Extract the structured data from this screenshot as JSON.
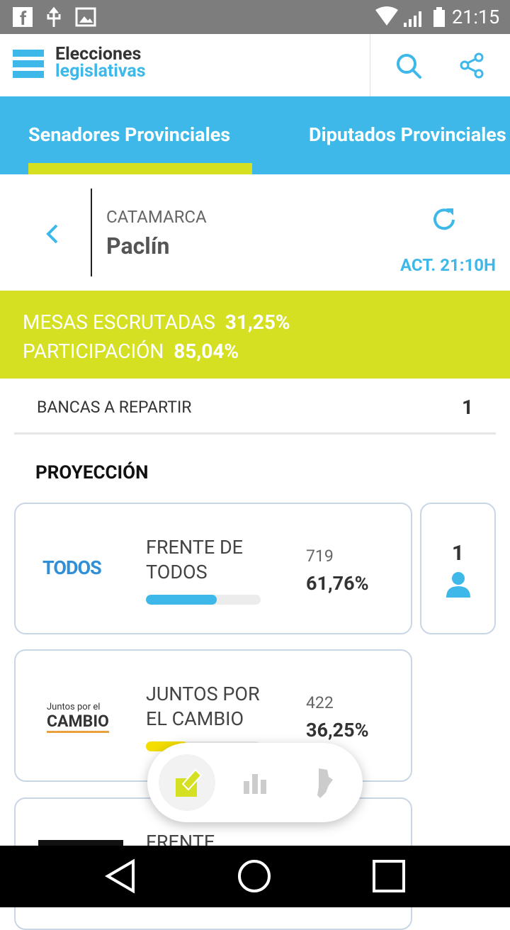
{
  "status_bar": {
    "time": "21:15"
  },
  "header": {
    "title_line1": "Elecciones",
    "title_line2": "legislativas"
  },
  "tabs": [
    "Senadores Provinciales",
    "Diputados Provinciales"
  ],
  "location": {
    "province": "CATAMARCA",
    "district": "Paclín",
    "updated": "ACT. 21:10H"
  },
  "stats": [
    {
      "label": "MESAS ESCRUTADAS",
      "value": "31,25%"
    },
    {
      "label": "PARTICIPACIÓN",
      "value": "85,04%"
    }
  ],
  "seats": {
    "label": "BANCAS A REPARTIR",
    "value": "1"
  },
  "projection": {
    "title": "PROYECCIÓN",
    "parties": [
      {
        "logo": "TODOS",
        "name": "FRENTE DE TODOS",
        "votes": "719",
        "percent": "61,76%",
        "seats": "1"
      },
      {
        "logo_top": "Juntos por el",
        "logo": "CAMBIO",
        "name": "JUNTOS POR EL CAMBIO",
        "votes": "422",
        "percent": "36,25%"
      },
      {
        "name": "FRENTE"
      }
    ]
  }
}
